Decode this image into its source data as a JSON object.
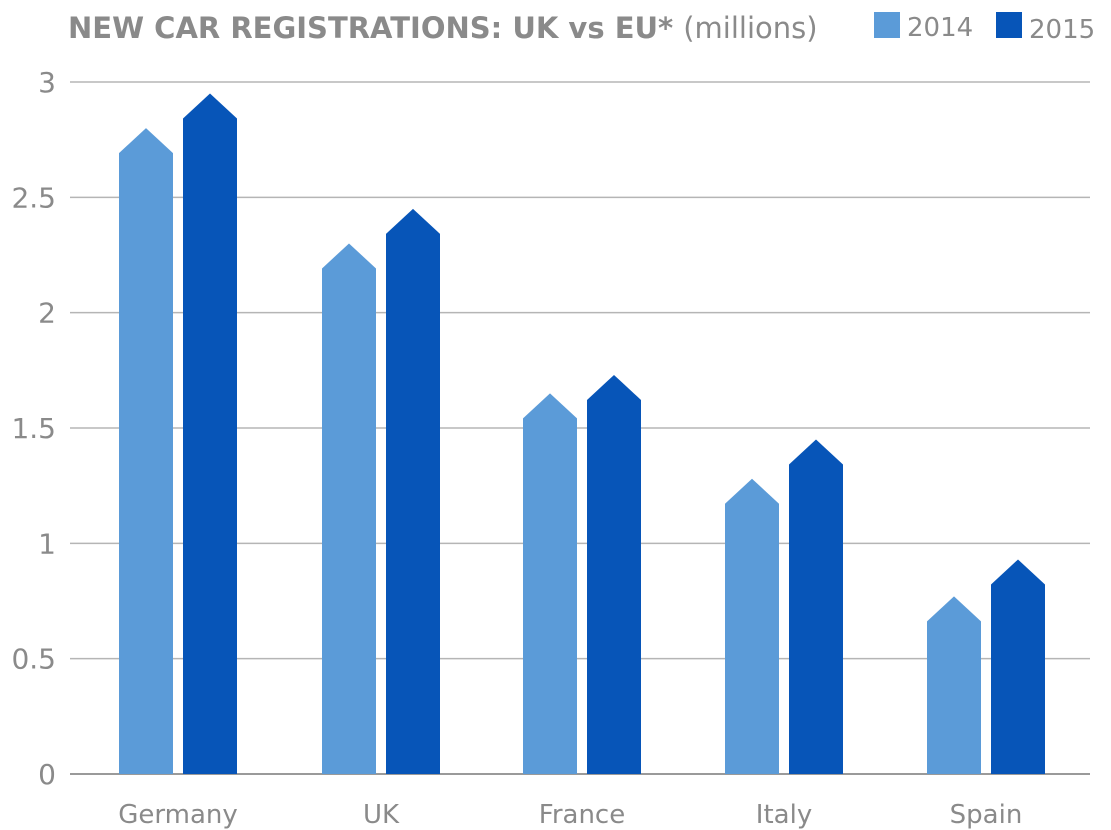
{
  "chart_data": {
    "type": "bar",
    "title": "NEW CAR REGISTRATIONS: UK vs EU*",
    "subtitle": "(millions)",
    "categories": [
      "Germany",
      "UK",
      "France",
      "Italy",
      "Spain"
    ],
    "series": [
      {
        "name": "2014",
        "color": "#5b9bd8",
        "values": [
          2.8,
          2.3,
          1.65,
          1.28,
          0.77
        ]
      },
      {
        "name": "2015",
        "color": "#0755b8",
        "values": [
          2.95,
          2.45,
          1.73,
          1.45,
          0.93
        ]
      }
    ],
    "ylim": [
      0,
      3
    ],
    "yticks": [
      "0",
      "0.5",
      "1",
      "1.5",
      "2",
      "2.5",
      "3"
    ],
    "ytick_values": [
      0,
      0.5,
      1,
      1.5,
      2,
      2.5,
      3
    ],
    "grid": true,
    "legend_position": "top-right",
    "xlabel": "",
    "ylabel": ""
  }
}
